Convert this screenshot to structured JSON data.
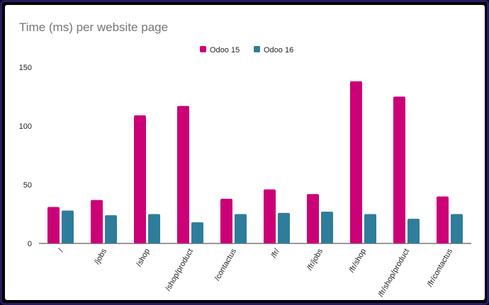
{
  "chart_data": {
    "type": "bar",
    "title": "Time (ms) per website page",
    "xlabel": "",
    "ylabel": "",
    "categories": [
      "/",
      "/jobs",
      "/shop",
      "/shop/product",
      "/contactus",
      "/fr/",
      "/fr/jobs",
      "/fr/shop",
      "/fr/shop/product",
      "/fr/contactus"
    ],
    "series": [
      {
        "name": "Odoo 15",
        "color": "#cc0077",
        "values": [
          31,
          37,
          109,
          117,
          38,
          46,
          42,
          138,
          125,
          40
        ]
      },
      {
        "name": "Odoo 16",
        "color": "#2e7d9b",
        "values": [
          28,
          24,
          25,
          18,
          25,
          26,
          27,
          25,
          21,
          25
        ]
      }
    ],
    "ylim": [
      0,
      150
    ],
    "yticks": [
      0,
      50,
      100,
      150
    ],
    "grid": false,
    "legend": "top-center"
  }
}
